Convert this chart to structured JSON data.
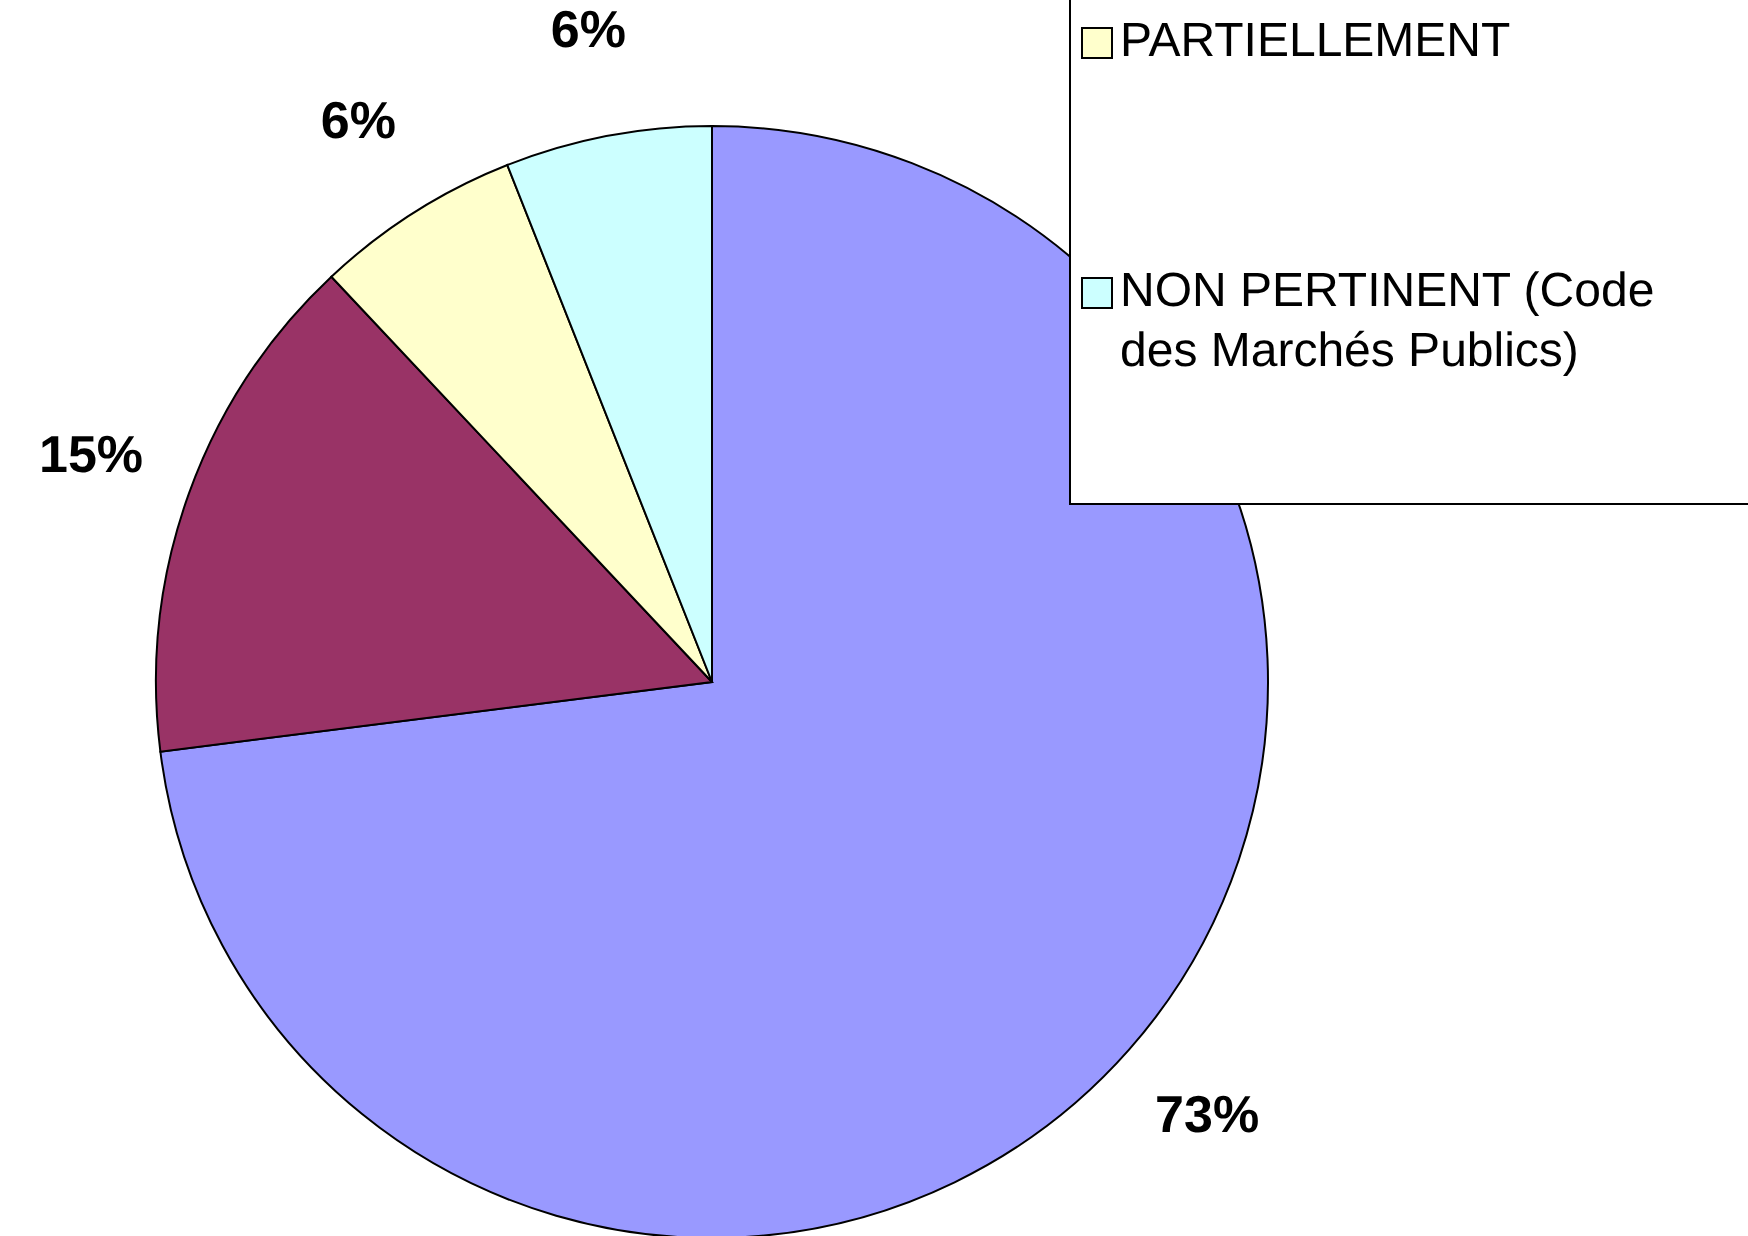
{
  "chart_data": {
    "type": "pie",
    "categories": [
      null,
      null,
      "PARTIELLEMENT",
      "NON PERTINENT (Code des Marchés Publics)"
    ],
    "values": [
      73,
      15,
      6,
      6
    ],
    "colors": [
      "#9999ff",
      "#993366",
      "#ffffcc",
      "#ccffff"
    ],
    "value_labels": [
      "73%",
      "15%",
      "6%",
      "6%"
    ],
    "legend": "top right"
  }
}
